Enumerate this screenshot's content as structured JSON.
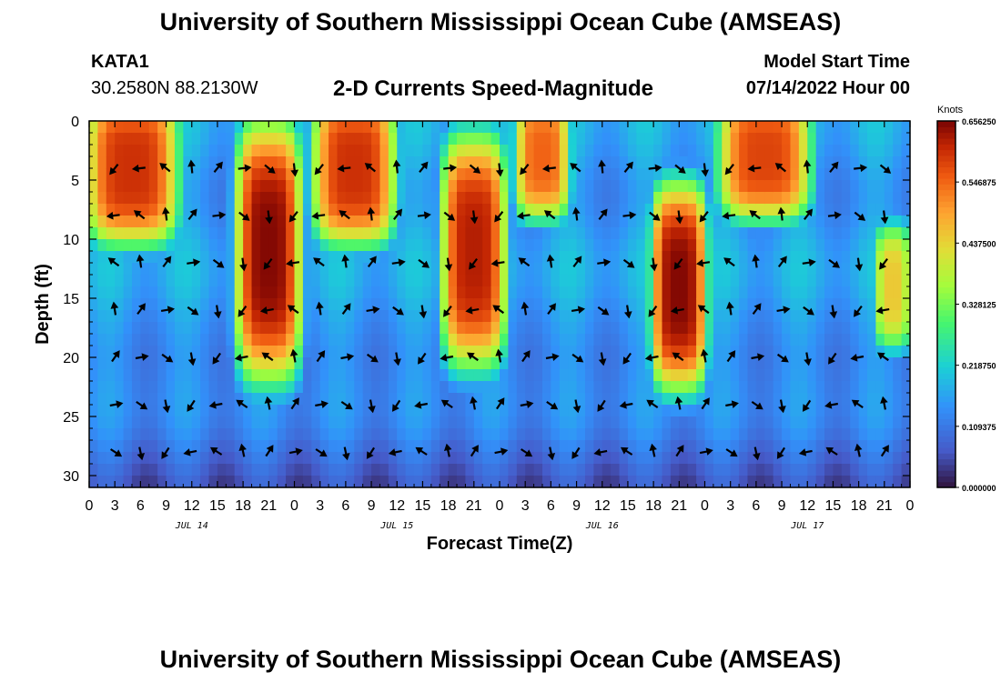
{
  "header": {
    "title": "University of Southern Mississippi Ocean Cube (AMSEAS)",
    "station": "KATA1",
    "coords": "30.2580N  88.2130W",
    "product": "2-D Currents Speed-Magnitude",
    "model_start_label": "Model Start Time",
    "model_start_value": "07/14/2022 Hour 00"
  },
  "footer": {
    "title": "University of Southern Mississippi Ocean Cube (AMSEAS)"
  },
  "chart_data": {
    "type": "heatmap",
    "title": "2-D Currents Speed-Magnitude",
    "xlabel": "Forecast Time(Z)",
    "ylabel": "Depth (ft)",
    "units": "Knots",
    "x_hours": [
      0,
      96
    ],
    "ylim": [
      0,
      31
    ],
    "x_tick_labels": [
      "0",
      "3",
      "6",
      "9",
      "12",
      "15",
      "18",
      "21",
      "0",
      "3",
      "6",
      "9",
      "12",
      "15",
      "18",
      "21",
      "0",
      "3",
      "6",
      "9",
      "12",
      "15",
      "18",
      "21",
      "0",
      "3",
      "6",
      "9",
      "12",
      "15",
      "18",
      "21",
      "0"
    ],
    "y_ticks": [
      0,
      5,
      10,
      15,
      20,
      25,
      30
    ],
    "date_labels": [
      {
        "hour": 12,
        "label": "JUL 14"
      },
      {
        "hour": 36,
        "label": "JUL 15"
      },
      {
        "hour": 60,
        "label": "JUL 16"
      },
      {
        "hour": 84,
        "label": "JUL 17"
      }
    ],
    "colorbar": {
      "range": [
        0,
        0.65625
      ],
      "tick_values": [
        0.0,
        0.109375,
        0.21875,
        0.328125,
        0.4375,
        0.546875,
        0.65625
      ],
      "tick_labels": [
        "0.000000",
        "0.109375",
        "0.218750",
        "0.328125",
        "0.437500",
        "0.546875",
        "0.656250"
      ]
    },
    "high_speed_cores": [
      {
        "hour": 5,
        "depth": 4,
        "speed": 0.6,
        "hw": 5,
        "dh": 6
      },
      {
        "hour": 21,
        "depth": 11,
        "speed": 0.65,
        "hw": 3.5,
        "dh": 10
      },
      {
        "hour": 31,
        "depth": 4,
        "speed": 0.6,
        "hw": 4.5,
        "dh": 6
      },
      {
        "hour": 45,
        "depth": 11,
        "speed": 0.62,
        "hw": 3.5,
        "dh": 9
      },
      {
        "hour": 53,
        "depth": 3,
        "speed": 0.55,
        "hw": 3,
        "dh": 5
      },
      {
        "hour": 69,
        "depth": 14,
        "speed": 0.65,
        "hw": 3,
        "dh": 8
      },
      {
        "hour": 79,
        "depth": 3,
        "speed": 0.58,
        "hw": 5,
        "dh": 5
      },
      {
        "hour": 94,
        "depth": 14,
        "speed": 0.45,
        "hw": 2,
        "dh": 5
      }
    ]
  }
}
